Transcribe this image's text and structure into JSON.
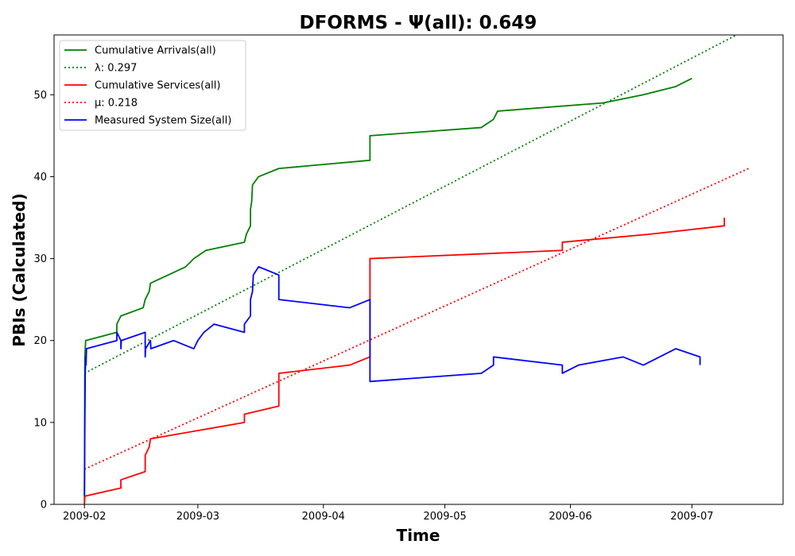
{
  "chart_data": {
    "type": "line",
    "title": "DFORMS -  Ψ(all): 0.649",
    "xlabel": "Time",
    "ylabel": "PBIs (Calculated)",
    "x_ticks": [
      "2009-02",
      "2009-03",
      "2009-04",
      "2009-05",
      "2009-06",
      "2009-07"
    ],
    "x_ticks_days": [
      0,
      28,
      59,
      89,
      120,
      150
    ],
    "xlim_days": [
      -7.5,
      172.5
    ],
    "y_ticks": [
      0,
      10,
      20,
      30,
      40,
      50
    ],
    "ylim": [
      0,
      57.3
    ],
    "grid": false,
    "legend_position": "top-left",
    "series": [
      {
        "name": "Cumulative Arrivals(all)",
        "color": "#008000",
        "style": "solid",
        "points": [
          [
            0,
            0
          ],
          [
            0.1,
            18
          ],
          [
            0.3,
            20
          ],
          [
            8,
            21
          ],
          [
            8,
            22
          ],
          [
            9,
            23
          ],
          [
            14.5,
            24
          ],
          [
            15,
            25
          ],
          [
            16,
            26
          ],
          [
            16.3,
            27
          ],
          [
            25,
            29
          ],
          [
            27,
            30
          ],
          [
            30,
            31
          ],
          [
            39.5,
            32
          ],
          [
            40,
            33
          ],
          [
            41,
            34
          ],
          [
            41,
            36
          ],
          [
            41.3,
            37
          ],
          [
            41.5,
            39
          ],
          [
            43,
            40
          ],
          [
            48,
            41
          ],
          [
            70.5,
            42
          ],
          [
            70.5,
            45
          ],
          [
            98,
            46
          ],
          [
            101,
            47
          ],
          [
            102,
            48
          ],
          [
            128,
            49
          ],
          [
            138,
            50
          ],
          [
            146,
            51
          ],
          [
            150,
            52
          ]
        ]
      },
      {
        "name": "λ: 0.297",
        "color": "#008000",
        "style": "dotted",
        "points": [
          [
            0,
            16
          ],
          [
            161,
            57.3
          ]
        ]
      },
      {
        "name": "Cumulative Services(all)",
        "color": "#ff0000",
        "style": "solid",
        "points": [
          [
            0,
            0
          ],
          [
            0.1,
            1
          ],
          [
            9,
            2
          ],
          [
            9,
            3
          ],
          [
            15,
            4
          ],
          [
            15,
            6
          ],
          [
            16,
            7
          ],
          [
            16.3,
            8
          ],
          [
            39.5,
            10
          ],
          [
            39.5,
            11
          ],
          [
            48,
            12
          ],
          [
            48,
            16
          ],
          [
            65.5,
            17
          ],
          [
            70.5,
            18
          ],
          [
            70.5,
            30
          ],
          [
            118,
            31
          ],
          [
            118,
            32
          ],
          [
            140,
            33
          ],
          [
            158,
            34
          ],
          [
            158,
            35
          ]
        ]
      },
      {
        "name": "μ: 0.218",
        "color": "#ff0000",
        "style": "dotted",
        "points": [
          [
            0,
            4.3
          ],
          [
            164,
            41
          ]
        ]
      },
      {
        "name": "Measured System Size(all)",
        "color": "#0000ff",
        "style": "solid",
        "points": [
          [
            0,
            1
          ],
          [
            0.1,
            10
          ],
          [
            0.2,
            16
          ],
          [
            0.3,
            18
          ],
          [
            0.4,
            17
          ],
          [
            0.5,
            19
          ],
          [
            8,
            20
          ],
          [
            8,
            21
          ],
          [
            9,
            20
          ],
          [
            9,
            19
          ],
          [
            9.1,
            20
          ],
          [
            15,
            21
          ],
          [
            15,
            18
          ],
          [
            15.1,
            19
          ],
          [
            16.3,
            20
          ],
          [
            16.4,
            19
          ],
          [
            22,
            20
          ],
          [
            27,
            19
          ],
          [
            28,
            20
          ],
          [
            29.5,
            21
          ],
          [
            32,
            22
          ],
          [
            39.5,
            21
          ],
          [
            39.5,
            22
          ],
          [
            41,
            23
          ],
          [
            41,
            25
          ],
          [
            41.5,
            26
          ],
          [
            41.7,
            28
          ],
          [
            43,
            29
          ],
          [
            48,
            28
          ],
          [
            48,
            25
          ],
          [
            65.5,
            24
          ],
          [
            70.5,
            25
          ],
          [
            70.5,
            15
          ],
          [
            98,
            16
          ],
          [
            101,
            17
          ],
          [
            101,
            18
          ],
          [
            118,
            17
          ],
          [
            118,
            16
          ],
          [
            122,
            17
          ],
          [
            133,
            18
          ],
          [
            138,
            17
          ],
          [
            146,
            19
          ],
          [
            152,
            18
          ],
          [
            152,
            17
          ]
        ]
      }
    ]
  }
}
